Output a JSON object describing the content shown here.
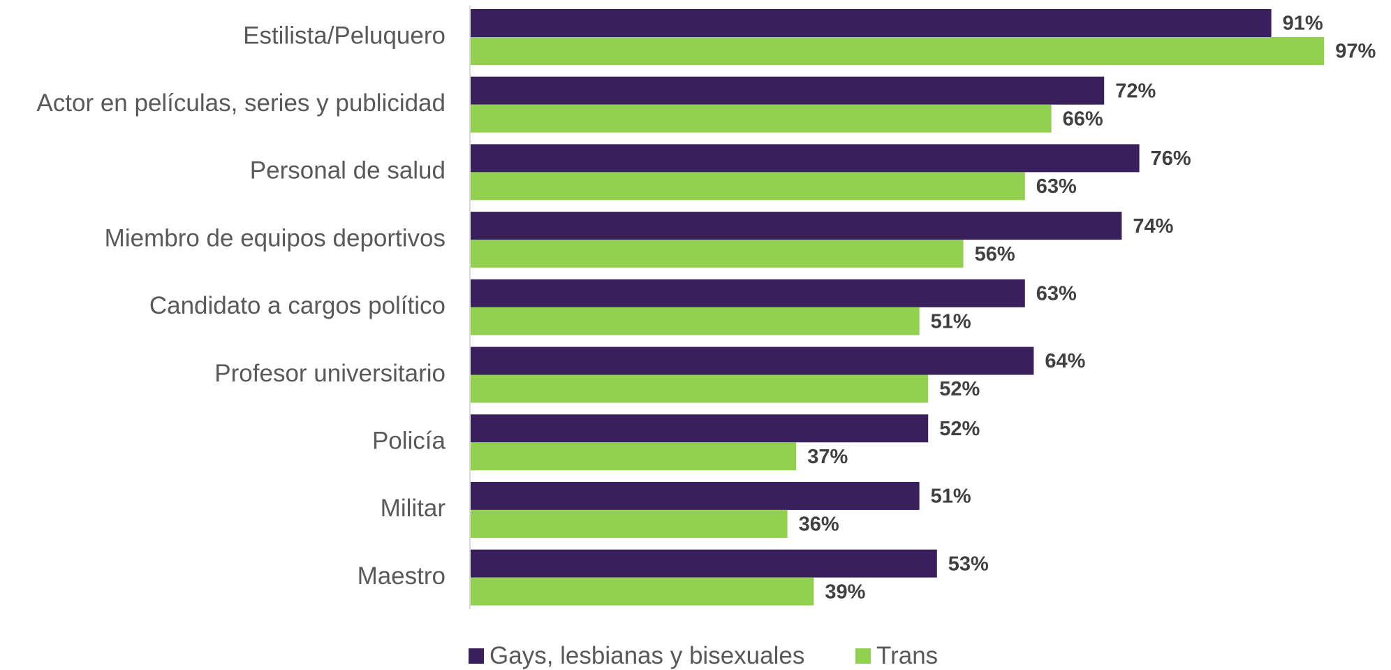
{
  "chart_data": {
    "type": "bar",
    "orientation": "horizontal",
    "categories": [
      "Estilista/Peluquero",
      "Actor en películas, series y publicidad",
      "Personal de salud",
      "Miembro de equipos deportivos",
      "Candidato a cargos político",
      "Profesor universitario",
      "Policía",
      "Militar",
      "Maestro"
    ],
    "series": [
      {
        "name": "Gays, lesbianas y bisexuales",
        "color": "#3a1f5d",
        "values": [
          91,
          72,
          76,
          74,
          63,
          64,
          52,
          51,
          53
        ],
        "labels": [
          "91%",
          "72%",
          "76%",
          "74%",
          "63%",
          "64%",
          "52%",
          "51%",
          "53%"
        ]
      },
      {
        "name": "Trans",
        "color": "#92d050",
        "values": [
          97,
          66,
          63,
          56,
          51,
          52,
          37,
          36,
          39
        ],
        "labels": [
          "97%",
          "66%",
          "63%",
          "56%",
          "51%",
          "52%",
          "37%",
          "36%",
          "39%"
        ]
      }
    ],
    "xlim": [
      0,
      100
    ],
    "grid": false,
    "legend_position": "bottom"
  }
}
